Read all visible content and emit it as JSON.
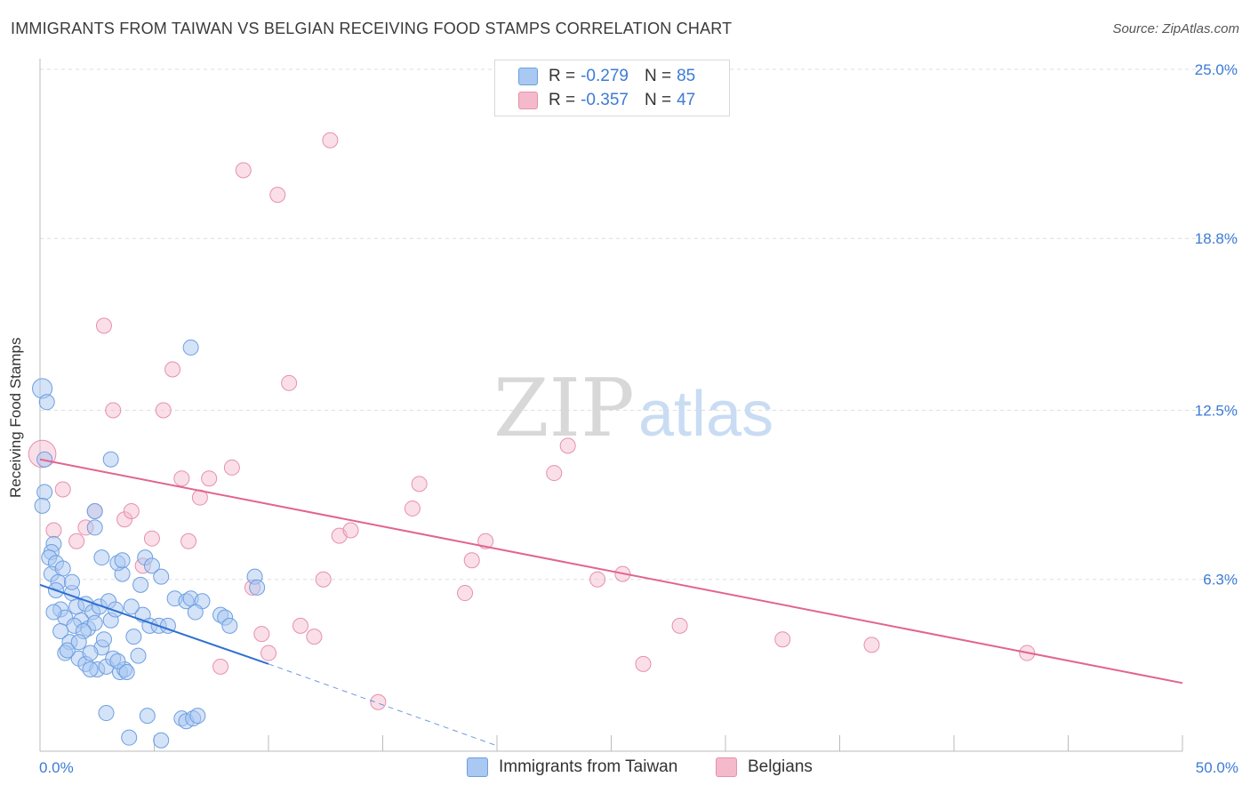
{
  "header": {
    "title": "IMMIGRANTS FROM TAIWAN VS BELGIAN RECEIVING FOOD STAMPS CORRELATION CHART",
    "source": "Source: ZipAtlas.com"
  },
  "watermark": {
    "zip": "ZIP",
    "atlas": "atlas"
  },
  "legend": {
    "rows": [
      {
        "r_label": "R =",
        "r_value": "-0.279",
        "n_label": "N =",
        "n_value": "85"
      },
      {
        "r_label": "R =",
        "r_value": "-0.357",
        "n_label": "N =",
        "n_value": "47"
      }
    ]
  },
  "bottom_legend": [
    "Immigrants from Taiwan",
    "Belgians"
  ],
  "colors": {
    "taiwan_fill": "#a9c8f2",
    "taiwan_stroke": "#6d9fe0",
    "taiwan_line": "#2f6fd1",
    "belgian_fill": "#f5b9cc",
    "belgian_stroke": "#e690ad",
    "belgian_line": "#e2648f",
    "axis_text": "#3d7bd6"
  },
  "chart_data": {
    "type": "scatter",
    "title": "IMMIGRANTS FROM TAIWAN VS BELGIAN RECEIVING FOOD STAMPS CORRELATION CHART",
    "xlabel": "",
    "ylabel": "Receiving Food Stamps",
    "xlim": [
      0,
      50
    ],
    "ylim": [
      0,
      25
    ],
    "x_tick_labels": [
      "0.0%",
      "50.0%"
    ],
    "y_ticks": [
      6.3,
      12.5,
      18.8,
      25.0
    ],
    "y_tick_labels": [
      "6.3%",
      "12.5%",
      "18.8%",
      "25.0%"
    ],
    "grid": true,
    "legend_placement": "top-center",
    "series": [
      {
        "name": "Immigrants from Taiwan",
        "r": -0.279,
        "n": 85,
        "trend": {
          "x_solid": [
            0,
            10
          ],
          "y_solid": [
            6.1,
            3.2
          ],
          "x_dash": [
            10,
            20
          ],
          "y_dash": [
            3.2,
            0.2
          ]
        },
        "points": [
          {
            "x": 0.1,
            "y": 13.3,
            "s": 1.3
          },
          {
            "x": 0.3,
            "y": 12.8,
            "s": 1
          },
          {
            "x": 0.2,
            "y": 10.7,
            "s": 1
          },
          {
            "x": 0.2,
            "y": 9.5,
            "s": 1
          },
          {
            "x": 0.1,
            "y": 9.0,
            "s": 1
          },
          {
            "x": 0.6,
            "y": 7.6,
            "s": 1
          },
          {
            "x": 0.5,
            "y": 7.3,
            "s": 1
          },
          {
            "x": 0.4,
            "y": 7.1,
            "s": 1
          },
          {
            "x": 0.7,
            "y": 6.9,
            "s": 1
          },
          {
            "x": 0.5,
            "y": 6.5,
            "s": 1
          },
          {
            "x": 1.0,
            "y": 6.7,
            "s": 1
          },
          {
            "x": 0.8,
            "y": 6.2,
            "s": 1
          },
          {
            "x": 0.7,
            "y": 5.9,
            "s": 1
          },
          {
            "x": 1.4,
            "y": 5.8,
            "s": 1
          },
          {
            "x": 0.9,
            "y": 5.2,
            "s": 1
          },
          {
            "x": 1.1,
            "y": 4.9,
            "s": 1
          },
          {
            "x": 1.6,
            "y": 5.3,
            "s": 1
          },
          {
            "x": 2.0,
            "y": 5.4,
            "s": 1
          },
          {
            "x": 2.3,
            "y": 5.1,
            "s": 1
          },
          {
            "x": 1.8,
            "y": 4.8,
            "s": 1
          },
          {
            "x": 2.6,
            "y": 5.3,
            "s": 1
          },
          {
            "x": 3.0,
            "y": 5.5,
            "s": 1
          },
          {
            "x": 2.1,
            "y": 4.5,
            "s": 1
          },
          {
            "x": 0.9,
            "y": 4.4,
            "s": 1
          },
          {
            "x": 1.3,
            "y": 4.0,
            "s": 1
          },
          {
            "x": 1.1,
            "y": 3.6,
            "s": 1
          },
          {
            "x": 1.7,
            "y": 3.4,
            "s": 1
          },
          {
            "x": 2.0,
            "y": 3.2,
            "s": 1
          },
          {
            "x": 2.5,
            "y": 3.0,
            "s": 1
          },
          {
            "x": 2.9,
            "y": 3.1,
            "s": 1
          },
          {
            "x": 3.2,
            "y": 3.4,
            "s": 1
          },
          {
            "x": 3.5,
            "y": 2.9,
            "s": 1
          },
          {
            "x": 3.7,
            "y": 3.0,
            "s": 1
          },
          {
            "x": 2.7,
            "y": 3.8,
            "s": 1
          },
          {
            "x": 2.4,
            "y": 4.7,
            "s": 1
          },
          {
            "x": 3.1,
            "y": 4.8,
            "s": 1
          },
          {
            "x": 3.3,
            "y": 5.2,
            "s": 1
          },
          {
            "x": 2.8,
            "y": 4.1,
            "s": 1
          },
          {
            "x": 3.4,
            "y": 3.3,
            "s": 1
          },
          {
            "x": 4.1,
            "y": 4.2,
            "s": 1
          },
          {
            "x": 4.3,
            "y": 3.5,
            "s": 1
          },
          {
            "x": 4.5,
            "y": 5.0,
            "s": 1
          },
          {
            "x": 4.8,
            "y": 4.6,
            "s": 1
          },
          {
            "x": 5.2,
            "y": 4.6,
            "s": 1
          },
          {
            "x": 5.6,
            "y": 4.6,
            "s": 1
          },
          {
            "x": 4.4,
            "y": 6.1,
            "s": 1
          },
          {
            "x": 3.6,
            "y": 6.5,
            "s": 1
          },
          {
            "x": 3.4,
            "y": 6.9,
            "s": 1
          },
          {
            "x": 2.7,
            "y": 7.1,
            "s": 1
          },
          {
            "x": 3.6,
            "y": 7.0,
            "s": 1
          },
          {
            "x": 4.6,
            "y": 7.1,
            "s": 1
          },
          {
            "x": 4.9,
            "y": 6.8,
            "s": 1
          },
          {
            "x": 5.9,
            "y": 5.6,
            "s": 1
          },
          {
            "x": 6.4,
            "y": 5.5,
            "s": 1
          },
          {
            "x": 6.6,
            "y": 5.6,
            "s": 1
          },
          {
            "x": 7.1,
            "y": 5.5,
            "s": 1
          },
          {
            "x": 6.8,
            "y": 5.1,
            "s": 1
          },
          {
            "x": 7.9,
            "y": 5.0,
            "s": 1
          },
          {
            "x": 8.1,
            "y": 4.9,
            "s": 1
          },
          {
            "x": 8.3,
            "y": 4.6,
            "s": 1
          },
          {
            "x": 9.4,
            "y": 6.4,
            "s": 1
          },
          {
            "x": 9.5,
            "y": 6.0,
            "s": 1
          },
          {
            "x": 3.1,
            "y": 10.7,
            "s": 1
          },
          {
            "x": 2.4,
            "y": 8.8,
            "s": 1
          },
          {
            "x": 2.4,
            "y": 8.2,
            "s": 1
          },
          {
            "x": 6.6,
            "y": 14.8,
            "s": 1
          },
          {
            "x": 2.9,
            "y": 1.4,
            "s": 1
          },
          {
            "x": 4.7,
            "y": 1.3,
            "s": 1
          },
          {
            "x": 6.2,
            "y": 1.2,
            "s": 1
          },
          {
            "x": 6.4,
            "y": 1.1,
            "s": 1
          },
          {
            "x": 6.7,
            "y": 1.2,
            "s": 1
          },
          {
            "x": 6.9,
            "y": 1.3,
            "s": 1
          },
          {
            "x": 3.9,
            "y": 0.5,
            "s": 1
          },
          {
            "x": 5.3,
            "y": 0.4,
            "s": 1
          },
          {
            "x": 1.5,
            "y": 4.6,
            "s": 1
          },
          {
            "x": 1.9,
            "y": 4.4,
            "s": 1
          },
          {
            "x": 1.2,
            "y": 3.7,
            "s": 1
          },
          {
            "x": 2.2,
            "y": 3.0,
            "s": 1
          },
          {
            "x": 3.8,
            "y": 2.9,
            "s": 1
          },
          {
            "x": 1.4,
            "y": 6.2,
            "s": 1
          },
          {
            "x": 5.3,
            "y": 6.4,
            "s": 1
          },
          {
            "x": 4.0,
            "y": 5.3,
            "s": 1
          },
          {
            "x": 0.6,
            "y": 5.1,
            "s": 1
          },
          {
            "x": 1.7,
            "y": 4.0,
            "s": 1
          },
          {
            "x": 2.2,
            "y": 3.6,
            "s": 1
          }
        ]
      },
      {
        "name": "Belgians",
        "r": -0.357,
        "n": 47,
        "trend": {
          "x": [
            0,
            50
          ],
          "y": [
            10.7,
            2.5
          ]
        },
        "points": [
          {
            "x": 0.1,
            "y": 10.9,
            "s": 1.8
          },
          {
            "x": 1.0,
            "y": 9.6,
            "s": 1
          },
          {
            "x": 0.6,
            "y": 8.1,
            "s": 1
          },
          {
            "x": 1.6,
            "y": 7.7,
            "s": 1
          },
          {
            "x": 2.0,
            "y": 8.2,
            "s": 1
          },
          {
            "x": 2.4,
            "y": 8.8,
            "s": 1
          },
          {
            "x": 2.8,
            "y": 15.6,
            "s": 1
          },
          {
            "x": 3.2,
            "y": 12.5,
            "s": 1
          },
          {
            "x": 3.7,
            "y": 8.5,
            "s": 1
          },
          {
            "x": 4.0,
            "y": 8.8,
            "s": 1
          },
          {
            "x": 4.5,
            "y": 6.8,
            "s": 1
          },
          {
            "x": 4.9,
            "y": 7.8,
            "s": 1
          },
          {
            "x": 5.4,
            "y": 12.5,
            "s": 1
          },
          {
            "x": 5.8,
            "y": 14.0,
            "s": 1
          },
          {
            "x": 6.2,
            "y": 10.0,
            "s": 1
          },
          {
            "x": 6.5,
            "y": 7.7,
            "s": 1
          },
          {
            "x": 7.0,
            "y": 9.3,
            "s": 1
          },
          {
            "x": 7.4,
            "y": 10.0,
            "s": 1
          },
          {
            "x": 7.9,
            "y": 3.1,
            "s": 1
          },
          {
            "x": 8.4,
            "y": 10.4,
            "s": 1
          },
          {
            "x": 8.9,
            "y": 21.3,
            "s": 1
          },
          {
            "x": 9.3,
            "y": 6.0,
            "s": 1
          },
          {
            "x": 9.7,
            "y": 4.3,
            "s": 1
          },
          {
            "x": 10.0,
            "y": 3.6,
            "s": 1
          },
          {
            "x": 10.4,
            "y": 20.4,
            "s": 1
          },
          {
            "x": 10.9,
            "y": 13.5,
            "s": 1
          },
          {
            "x": 11.4,
            "y": 4.6,
            "s": 1
          },
          {
            "x": 12.0,
            "y": 4.2,
            "s": 1
          },
          {
            "x": 12.4,
            "y": 6.3,
            "s": 1
          },
          {
            "x": 12.7,
            "y": 22.4,
            "s": 1
          },
          {
            "x": 13.1,
            "y": 7.9,
            "s": 1
          },
          {
            "x": 13.6,
            "y": 8.1,
            "s": 1
          },
          {
            "x": 14.8,
            "y": 1.8,
            "s": 1
          },
          {
            "x": 16.3,
            "y": 8.9,
            "s": 1
          },
          {
            "x": 16.6,
            "y": 9.8,
            "s": 1
          },
          {
            "x": 18.6,
            "y": 5.8,
            "s": 1
          },
          {
            "x": 18.9,
            "y": 7.0,
            "s": 1
          },
          {
            "x": 19.5,
            "y": 7.7,
            "s": 1
          },
          {
            "x": 22.5,
            "y": 10.2,
            "s": 1
          },
          {
            "x": 23.1,
            "y": 11.2,
            "s": 1
          },
          {
            "x": 24.4,
            "y": 6.3,
            "s": 1
          },
          {
            "x": 25.5,
            "y": 6.5,
            "s": 1
          },
          {
            "x": 26.4,
            "y": 3.2,
            "s": 1
          },
          {
            "x": 28.0,
            "y": 4.6,
            "s": 1
          },
          {
            "x": 32.5,
            "y": 4.1,
            "s": 1
          },
          {
            "x": 36.4,
            "y": 3.9,
            "s": 1
          },
          {
            "x": 43.2,
            "y": 3.6,
            "s": 1
          }
        ]
      }
    ]
  }
}
